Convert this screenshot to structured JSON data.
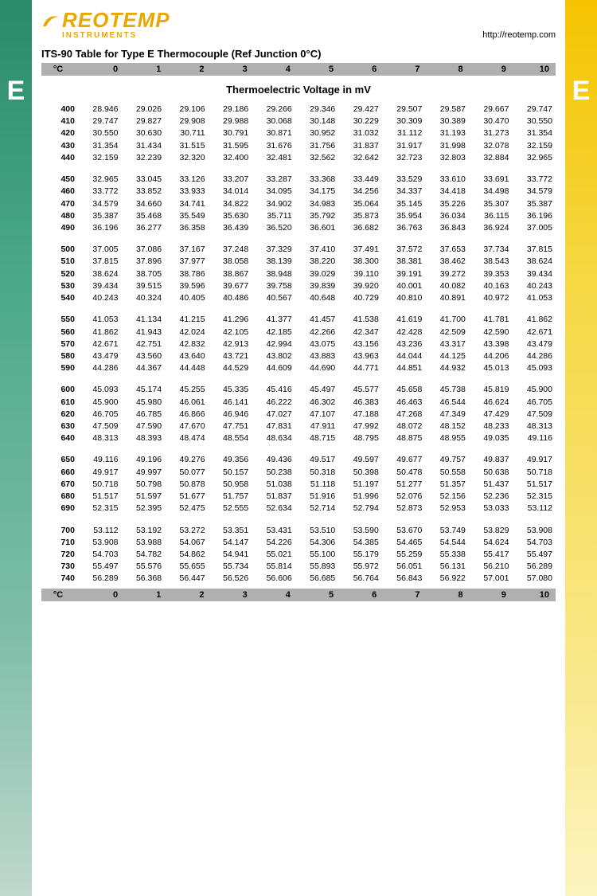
{
  "logo": {
    "name": "REOTEMP",
    "sub": "INSTRUMENTS"
  },
  "url": "http://reotemp.com",
  "title": "ITS-90 Table for Type E Thermocouple (Ref Junction 0°C)",
  "subtitle": "Thermoelectric Voltage in mV",
  "stripe_letter": "E",
  "colors": {
    "left_stripe_top": "#2a8a6a",
    "right_stripe_top": "#f5c400",
    "header_bar": "#b0b0b0",
    "logo_color": "#e8a800"
  },
  "columns": [
    "°C",
    "0",
    "1",
    "2",
    "3",
    "4",
    "5",
    "6",
    "7",
    "8",
    "9",
    "10"
  ],
  "groups": [
    {
      "rows": [
        {
          "t": "400",
          "v": [
            "28.946",
            "29.026",
            "29.106",
            "29.186",
            "29.266",
            "29.346",
            "29.427",
            "29.507",
            "29.587",
            "29.667",
            "29.747"
          ]
        },
        {
          "t": "410",
          "v": [
            "29.747",
            "29.827",
            "29.908",
            "29.988",
            "30.068",
            "30.148",
            "30.229",
            "30.309",
            "30.389",
            "30.470",
            "30.550"
          ]
        },
        {
          "t": "420",
          "v": [
            "30.550",
            "30.630",
            "30.711",
            "30.791",
            "30.871",
            "30.952",
            "31.032",
            "31.112",
            "31.193",
            "31.273",
            "31.354"
          ]
        },
        {
          "t": "430",
          "v": [
            "31.354",
            "31.434",
            "31.515",
            "31.595",
            "31.676",
            "31.756",
            "31.837",
            "31.917",
            "31.998",
            "32.078",
            "32.159"
          ]
        },
        {
          "t": "440",
          "v": [
            "32.159",
            "32.239",
            "32.320",
            "32.400",
            "32.481",
            "32.562",
            "32.642",
            "32.723",
            "32.803",
            "32.884",
            "32.965"
          ]
        }
      ]
    },
    {
      "rows": [
        {
          "t": "450",
          "v": [
            "32.965",
            "33.045",
            "33.126",
            "33.207",
            "33.287",
            "33.368",
            "33.449",
            "33.529",
            "33.610",
            "33.691",
            "33.772"
          ]
        },
        {
          "t": "460",
          "v": [
            "33.772",
            "33.852",
            "33.933",
            "34.014",
            "34.095",
            "34.175",
            "34.256",
            "34.337",
            "34.418",
            "34.498",
            "34.579"
          ]
        },
        {
          "t": "470",
          "v": [
            "34.579",
            "34.660",
            "34.741",
            "34.822",
            "34.902",
            "34.983",
            "35.064",
            "35.145",
            "35.226",
            "35.307",
            "35.387"
          ]
        },
        {
          "t": "480",
          "v": [
            "35.387",
            "35.468",
            "35.549",
            "35.630",
            "35.711",
            "35.792",
            "35.873",
            "35.954",
            "36.034",
            "36.115",
            "36.196"
          ]
        },
        {
          "t": "490",
          "v": [
            "36.196",
            "36.277",
            "36.358",
            "36.439",
            "36.520",
            "36.601",
            "36.682",
            "36.763",
            "36.843",
            "36.924",
            "37.005"
          ]
        }
      ]
    },
    {
      "rows": [
        {
          "t": "500",
          "v": [
            "37.005",
            "37.086",
            "37.167",
            "37.248",
            "37.329",
            "37.410",
            "37.491",
            "37.572",
            "37.653",
            "37.734",
            "37.815"
          ]
        },
        {
          "t": "510",
          "v": [
            "37.815",
            "37.896",
            "37.977",
            "38.058",
            "38.139",
            "38.220",
            "38.300",
            "38.381",
            "38.462",
            "38.543",
            "38.624"
          ]
        },
        {
          "t": "520",
          "v": [
            "38.624",
            "38.705",
            "38.786",
            "38.867",
            "38.948",
            "39.029",
            "39.110",
            "39.191",
            "39.272",
            "39.353",
            "39.434"
          ]
        },
        {
          "t": "530",
          "v": [
            "39.434",
            "39.515",
            "39.596",
            "39.677",
            "39.758",
            "39.839",
            "39.920",
            "40.001",
            "40.082",
            "40.163",
            "40.243"
          ]
        },
        {
          "t": "540",
          "v": [
            "40.243",
            "40.324",
            "40.405",
            "40.486",
            "40.567",
            "40.648",
            "40.729",
            "40.810",
            "40.891",
            "40.972",
            "41.053"
          ]
        }
      ]
    },
    {
      "rows": [
        {
          "t": "550",
          "v": [
            "41.053",
            "41.134",
            "41.215",
            "41.296",
            "41.377",
            "41.457",
            "41.538",
            "41.619",
            "41.700",
            "41.781",
            "41.862"
          ]
        },
        {
          "t": "560",
          "v": [
            "41.862",
            "41.943",
            "42.024",
            "42.105",
            "42.185",
            "42.266",
            "42.347",
            "42.428",
            "42.509",
            "42.590",
            "42.671"
          ]
        },
        {
          "t": "570",
          "v": [
            "42.671",
            "42.751",
            "42.832",
            "42.913",
            "42.994",
            "43.075",
            "43.156",
            "43.236",
            "43.317",
            "43.398",
            "43.479"
          ]
        },
        {
          "t": "580",
          "v": [
            "43.479",
            "43.560",
            "43.640",
            "43.721",
            "43.802",
            "43.883",
            "43.963",
            "44.044",
            "44.125",
            "44.206",
            "44.286"
          ]
        },
        {
          "t": "590",
          "v": [
            "44.286",
            "44.367",
            "44.448",
            "44.529",
            "44.609",
            "44.690",
            "44.771",
            "44.851",
            "44.932",
            "45.013",
            "45.093"
          ]
        }
      ]
    },
    {
      "rows": [
        {
          "t": "600",
          "v": [
            "45.093",
            "45.174",
            "45.255",
            "45.335",
            "45.416",
            "45.497",
            "45.577",
            "45.658",
            "45.738",
            "45.819",
            "45.900"
          ]
        },
        {
          "t": "610",
          "v": [
            "45.900",
            "45.980",
            "46.061",
            "46.141",
            "46.222",
            "46.302",
            "46.383",
            "46.463",
            "46.544",
            "46.624",
            "46.705"
          ]
        },
        {
          "t": "620",
          "v": [
            "46.705",
            "46.785",
            "46.866",
            "46.946",
            "47.027",
            "47.107",
            "47.188",
            "47.268",
            "47.349",
            "47.429",
            "47.509"
          ]
        },
        {
          "t": "630",
          "v": [
            "47.509",
            "47.590",
            "47.670",
            "47.751",
            "47.831",
            "47.911",
            "47.992",
            "48.072",
            "48.152",
            "48.233",
            "48.313"
          ]
        },
        {
          "t": "640",
          "v": [
            "48.313",
            "48.393",
            "48.474",
            "48.554",
            "48.634",
            "48.715",
            "48.795",
            "48.875",
            "48.955",
            "49.035",
            "49.116"
          ]
        }
      ]
    },
    {
      "rows": [
        {
          "t": "650",
          "v": [
            "49.116",
            "49.196",
            "49.276",
            "49.356",
            "49.436",
            "49.517",
            "49.597",
            "49.677",
            "49.757",
            "49.837",
            "49.917"
          ]
        },
        {
          "t": "660",
          "v": [
            "49.917",
            "49.997",
            "50.077",
            "50.157",
            "50.238",
            "50.318",
            "50.398",
            "50.478",
            "50.558",
            "50.638",
            "50.718"
          ]
        },
        {
          "t": "670",
          "v": [
            "50.718",
            "50.798",
            "50.878",
            "50.958",
            "51.038",
            "51.118",
            "51.197",
            "51.277",
            "51.357",
            "51.437",
            "51.517"
          ]
        },
        {
          "t": "680",
          "v": [
            "51.517",
            "51.597",
            "51.677",
            "51.757",
            "51.837",
            "51.916",
            "51.996",
            "52.076",
            "52.156",
            "52.236",
            "52.315"
          ]
        },
        {
          "t": "690",
          "v": [
            "52.315",
            "52.395",
            "52.475",
            "52.555",
            "52.634",
            "52.714",
            "52.794",
            "52.873",
            "52.953",
            "53.033",
            "53.112"
          ]
        }
      ]
    },
    {
      "rows": [
        {
          "t": "700",
          "v": [
            "53.112",
            "53.192",
            "53.272",
            "53.351",
            "53.431",
            "53.510",
            "53.590",
            "53.670",
            "53.749",
            "53.829",
            "53.908"
          ]
        },
        {
          "t": "710",
          "v": [
            "53.908",
            "53.988",
            "54.067",
            "54.147",
            "54.226",
            "54.306",
            "54.385",
            "54.465",
            "54.544",
            "54.624",
            "54.703"
          ]
        },
        {
          "t": "720",
          "v": [
            "54.703",
            "54.782",
            "54.862",
            "54.941",
            "55.021",
            "55.100",
            "55.179",
            "55.259",
            "55.338",
            "55.417",
            "55.497"
          ]
        },
        {
          "t": "730",
          "v": [
            "55.497",
            "55.576",
            "55.655",
            "55.734",
            "55.814",
            "55.893",
            "55.972",
            "56.051",
            "56.131",
            "56.210",
            "56.289"
          ]
        },
        {
          "t": "740",
          "v": [
            "56.289",
            "56.368",
            "56.447",
            "56.526",
            "56.606",
            "56.685",
            "56.764",
            "56.843",
            "56.922",
            "57.001",
            "57.080"
          ]
        }
      ]
    }
  ]
}
